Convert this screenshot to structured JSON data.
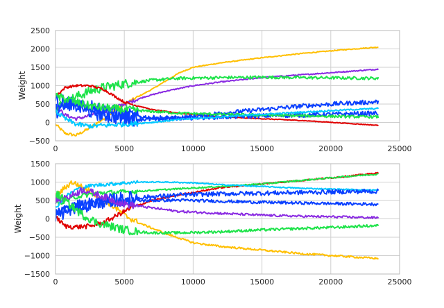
{
  "chart_data": [
    {
      "type": "line",
      "title": "",
      "xlabel": "",
      "ylabel": "Weight",
      "xlim": [
        0,
        25000
      ],
      "ylim": [
        -500,
        2500
      ],
      "xticks": [
        0,
        5000,
        10000,
        15000,
        20000,
        25000
      ],
      "xtick_labels": [
        "0",
        "5000",
        "10000",
        "15000",
        "20000",
        "25000"
      ],
      "yticks": [
        -500,
        0,
        500,
        1000,
        1500,
        2000,
        2500
      ],
      "ytick_labels": [
        "−500",
        "0",
        "500",
        "1000",
        "1500",
        "2000",
        "2500"
      ],
      "grid": true,
      "legend": "none",
      "series": [
        {
          "color": "#ffbf00",
          "noise": 12,
          "x": [
            0,
            700,
            1500,
            2500,
            3500,
            5000,
            7000,
            9000,
            10000,
            12000,
            15000,
            18000,
            21000,
            23500
          ],
          "y": [
            -50,
            -300,
            -350,
            -150,
            100,
            500,
            900,
            1350,
            1500,
            1620,
            1760,
            1880,
            1980,
            2050
          ]
        },
        {
          "color": "#8a2be2",
          "noise": 15,
          "x": [
            0,
            700,
            1500,
            2500,
            3500,
            5000,
            6500,
            8000,
            10000,
            12000,
            15000,
            18000,
            21000,
            23500
          ],
          "y": [
            450,
            200,
            100,
            180,
            300,
            500,
            700,
            850,
            1000,
            1100,
            1220,
            1300,
            1380,
            1450
          ]
        },
        {
          "color": "#1ee34a",
          "noise": 40,
          "x": [
            0,
            700,
            1500,
            2500,
            3500,
            5000,
            7000,
            9000,
            12000,
            15000,
            18000,
            21000,
            23500
          ],
          "y": [
            400,
            550,
            700,
            850,
            950,
            1050,
            1150,
            1200,
            1220,
            1230,
            1220,
            1210,
            1200
          ]
        },
        {
          "color": "#e00000",
          "noise": 10,
          "x": [
            0,
            700,
            1500,
            2500,
            3500,
            5000,
            7000,
            9000,
            12000,
            15000,
            18000,
            21000,
            23500
          ],
          "y": [
            700,
            950,
            1000,
            1000,
            900,
            550,
            350,
            250,
            150,
            100,
            50,
            -20,
            -80
          ]
        },
        {
          "color": "#0a40ff",
          "noise": 60,
          "x": [
            0,
            700,
            1500,
            2500,
            3500,
            5000,
            7000,
            9000,
            12000,
            15000,
            18000,
            21000,
            23500
          ],
          "y": [
            600,
            550,
            450,
            300,
            200,
            100,
            80,
            120,
            250,
            350,
            450,
            520,
            560
          ]
        },
        {
          "color": "#0a40ff",
          "noise": 60,
          "x": [
            0,
            700,
            1500,
            2500,
            3500,
            5000,
            7000,
            9000,
            12000,
            15000,
            18000,
            21000,
            23500
          ],
          "y": [
            300,
            400,
            500,
            450,
            350,
            200,
            130,
            120,
            150,
            180,
            200,
            230,
            250
          ]
        },
        {
          "color": "#1ee34a",
          "noise": 35,
          "x": [
            0,
            700,
            1500,
            2500,
            3500,
            5000,
            7000,
            9000,
            12000,
            15000,
            18000,
            21000,
            23500
          ],
          "y": [
            700,
            650,
            550,
            450,
            400,
            350,
            300,
            250,
            220,
            200,
            180,
            160,
            150
          ]
        },
        {
          "color": "#00c8ff",
          "noise": 20,
          "x": [
            0,
            700,
            1500,
            2500,
            3500,
            5000,
            7000,
            9000,
            12000,
            15000,
            18000,
            21000,
            23500
          ],
          "y": [
            300,
            100,
            -50,
            -100,
            -80,
            -50,
            0,
            80,
            150,
            220,
            280,
            340,
            380
          ]
        }
      ]
    },
    {
      "type": "line",
      "title": "",
      "xlabel": "",
      "ylabel": "Weight",
      "xlim": [
        0,
        25000
      ],
      "ylim": [
        -1500,
        1500
      ],
      "xticks": [
        0,
        5000,
        10000,
        15000,
        20000,
        25000
      ],
      "xtick_labels": [
        "0",
        "5000",
        "10000",
        "15000",
        "20000",
        "25000"
      ],
      "yticks": [
        -1500,
        -1000,
        -500,
        0,
        500,
        1000,
        1500
      ],
      "ytick_labels": [
        "−1500",
        "−1000",
        "−500",
        "0",
        "500",
        "1000",
        "1500"
      ],
      "grid": true,
      "legend": "none",
      "series": [
        {
          "color": "#ffbf00",
          "noise": 25,
          "x": [
            0,
            700,
            1200,
            2000,
            3000,
            4000,
            5000,
            6000,
            8000,
            10000,
            12000,
            15000,
            18000,
            21000,
            23500
          ],
          "y": [
            600,
            850,
            1000,
            850,
            650,
            400,
            100,
            -100,
            -400,
            -650,
            -750,
            -850,
            -950,
            -1020,
            -1080
          ]
        },
        {
          "color": "#e00000",
          "noise": 20,
          "x": [
            0,
            700,
            1500,
            2500,
            3500,
            4500,
            5500,
            7000,
            9000,
            12000,
            15000,
            18000,
            21000,
            23500
          ],
          "y": [
            50,
            -200,
            -220,
            -200,
            -100,
            100,
            300,
            500,
            650,
            850,
            950,
            1050,
            1150,
            1250
          ]
        },
        {
          "color": "#1ee34a",
          "noise": 20,
          "x": [
            0,
            1500,
            3000,
            6000,
            9000,
            12000,
            15000,
            18000,
            21000,
            23500
          ],
          "y": [
            400,
            600,
            700,
            750,
            820,
            880,
            950,
            1050,
            1150,
            1220
          ]
        },
        {
          "color": "#00c8ff",
          "noise": 15,
          "x": [
            0,
            700,
            1500,
            2500,
            4000,
            6000,
            8000,
            10000,
            12000,
            15000,
            18000,
            21000,
            23500
          ],
          "y": [
            300,
            600,
            800,
            900,
            950,
            1000,
            1000,
            980,
            930,
            880,
            830,
            800,
            780
          ]
        },
        {
          "color": "#0a40ff",
          "noise": 60,
          "x": [
            0,
            1500,
            3000,
            5000,
            7000,
            9000,
            12000,
            15000,
            18000,
            21000,
            23500
          ],
          "y": [
            100,
            300,
            450,
            550,
            600,
            650,
            680,
            700,
            720,
            740,
            750
          ]
        },
        {
          "color": "#0a40ff",
          "noise": 40,
          "x": [
            0,
            1500,
            3000,
            5000,
            7000,
            9000,
            12000,
            15000,
            18000,
            21000,
            23500
          ],
          "y": [
            200,
            350,
            420,
            480,
            500,
            510,
            480,
            450,
            430,
            410,
            400
          ]
        },
        {
          "color": "#8a2be2",
          "noise": 30,
          "x": [
            0,
            1000,
            2000,
            3500,
            5000,
            7000,
            9000,
            12000,
            15000,
            18000,
            21000,
            23500
          ],
          "y": [
            500,
            600,
            800,
            600,
            400,
            300,
            200,
            150,
            100,
            70,
            50,
            30
          ]
        },
        {
          "color": "#1ee34a",
          "noise": 35,
          "x": [
            0,
            1000,
            2000,
            3000,
            4000,
            5000,
            6000,
            7000,
            9000,
            12000,
            15000,
            18000,
            21000,
            23500
          ],
          "y": [
            700,
            400,
            100,
            -100,
            -200,
            -300,
            -350,
            -380,
            -380,
            -350,
            -300,
            -260,
            -220,
            -180
          ]
        }
      ]
    }
  ]
}
